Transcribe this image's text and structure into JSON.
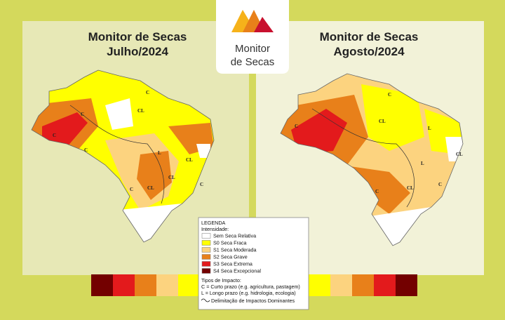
{
  "logo": {
    "line1": "Monitor",
    "line2": "de Secas"
  },
  "maps": [
    {
      "title": "Monitor de Secas",
      "subtitle": "Julho/2024",
      "labels": [
        "C",
        "CL",
        "C",
        "C",
        "C",
        "CL",
        "L",
        "C",
        "CL",
        "C",
        "CL"
      ]
    },
    {
      "title": "Monitor de Secas",
      "subtitle": "Agosto/2024",
      "labels": [
        "C",
        "CL",
        "L",
        "L",
        "C",
        "CL",
        "C",
        "CL",
        "C"
      ]
    }
  ],
  "legend": {
    "title": "LEGENDA",
    "intensity_heading": "Intensidade:",
    "items": [
      {
        "label": "Sem Seca Relativa",
        "color": "#ffffff"
      },
      {
        "label": "S0 Seca Fraca",
        "color": "#ffff00"
      },
      {
        "label": "S1 Seca Moderada",
        "color": "#fcd37f"
      },
      {
        "label": "S2 Seca Grave",
        "color": "#e8801a"
      },
      {
        "label": "S3 Seca Extrema",
        "color": "#e31a1c"
      },
      {
        "label": "S4 Seca Excepcional",
        "color": "#730000"
      }
    ],
    "impact_heading": "Tipos de Impacto:",
    "impact_items": [
      "C = Curto prazo (e.g. agricultura, pastagem)",
      "L = Longo prazo (e.g. hidrologia, ecologia)"
    ],
    "boundary_label": "Delimitação de Impactos Dominantes"
  }
}
